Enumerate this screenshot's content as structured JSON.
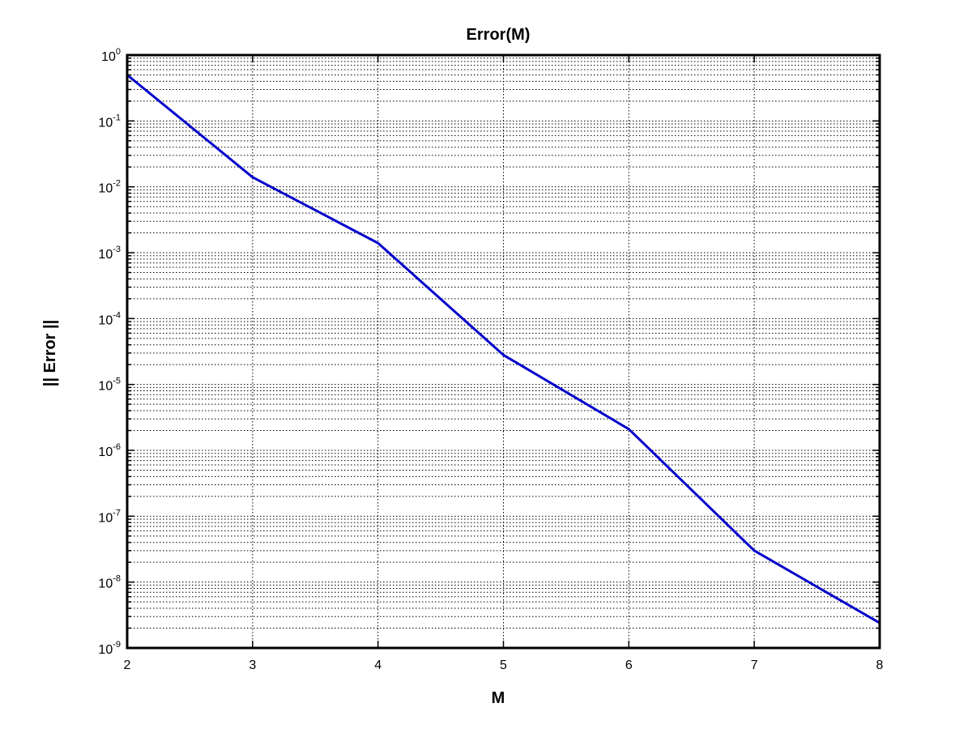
{
  "chart_data": {
    "type": "line",
    "title": "Error(M)",
    "xlabel": "M",
    "ylabel": "|| Error ||",
    "x_scale": "linear",
    "y_scale": "log",
    "xlim": [
      2,
      8
    ],
    "ylim": [
      1e-09,
      1
    ],
    "x_ticks": [
      {
        "value": 2,
        "label": "2"
      },
      {
        "value": 3,
        "label": "3"
      },
      {
        "value": 4,
        "label": "4"
      },
      {
        "value": 5,
        "label": "5"
      },
      {
        "value": 6,
        "label": "6"
      },
      {
        "value": 7,
        "label": "7"
      },
      {
        "value": 8,
        "label": "8"
      }
    ],
    "y_ticks": [
      {
        "value": 1,
        "base": "10",
        "exp": "0"
      },
      {
        "value": 0.1,
        "base": "10",
        "exp": "-1"
      },
      {
        "value": 0.01,
        "base": "10",
        "exp": "-2"
      },
      {
        "value": 0.001,
        "base": "10",
        "exp": "-3"
      },
      {
        "value": 0.0001,
        "base": "10",
        "exp": "-4"
      },
      {
        "value": 1e-05,
        "base": "10",
        "exp": "-5"
      },
      {
        "value": 1e-06,
        "base": "10",
        "exp": "-6"
      },
      {
        "value": 1e-07,
        "base": "10",
        "exp": "-7"
      },
      {
        "value": 1e-08,
        "base": "10",
        "exp": "-8"
      },
      {
        "value": 1e-09,
        "base": "10",
        "exp": "-9"
      }
    ],
    "grid": true,
    "minor_grid": true,
    "series": [
      {
        "color": "#0000cc",
        "x": [
          2,
          3,
          4,
          5,
          6,
          7,
          8
        ],
        "y": [
          0.5,
          0.014,
          0.0014,
          2.8e-05,
          2.1e-06,
          3e-08,
          2.4e-09
        ]
      }
    ]
  }
}
